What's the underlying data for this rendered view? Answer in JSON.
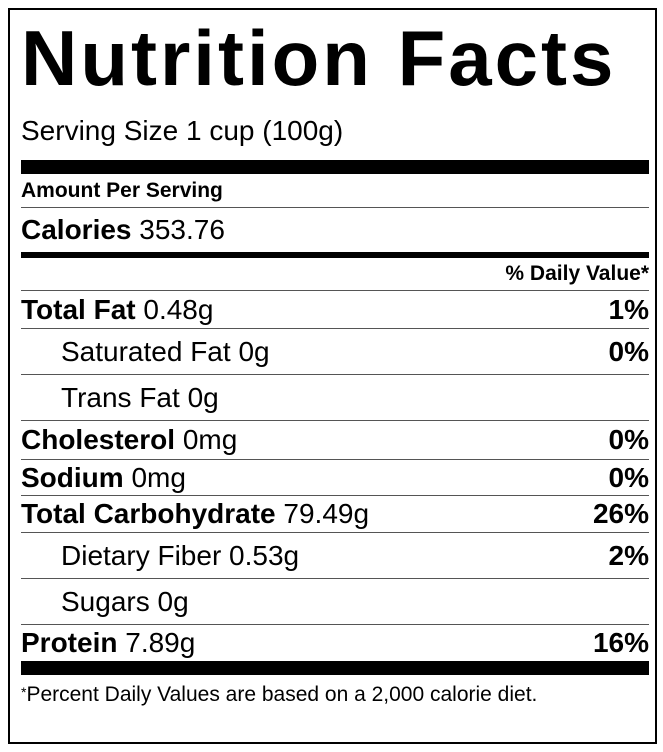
{
  "title": "Nutrition Facts",
  "serving_size": "Serving Size 1 cup (100g)",
  "amount_per_serving": "Amount Per Serving",
  "calories": {
    "label": "Calories",
    "value": "353.76"
  },
  "daily_value_header": "% Daily Value*",
  "nutrients": [
    {
      "label": "Total Fat",
      "value": "0.48g",
      "dv": "1%"
    },
    {
      "label": "Saturated Fat",
      "value": "0g",
      "dv": "0%"
    },
    {
      "label": "Trans Fat",
      "value": "0g",
      "dv": ""
    },
    {
      "label": "Cholesterol",
      "value": "0mg",
      "dv": "0%"
    },
    {
      "label": "Sodium",
      "value": "0mg",
      "dv": "0%"
    },
    {
      "label": "Total Carbohydrate",
      "value": "79.49g",
      "dv": "26%"
    },
    {
      "label": "Dietary Fiber",
      "value": "0.53g",
      "dv": "2%"
    },
    {
      "label": "Sugars",
      "value": "0g",
      "dv": ""
    },
    {
      "label": "Protein",
      "value": "7.89g",
      "dv": "16%"
    }
  ],
  "footnote": {
    "star": "*",
    "text": "Percent Daily Values are based on a 2,000 calorie diet."
  }
}
